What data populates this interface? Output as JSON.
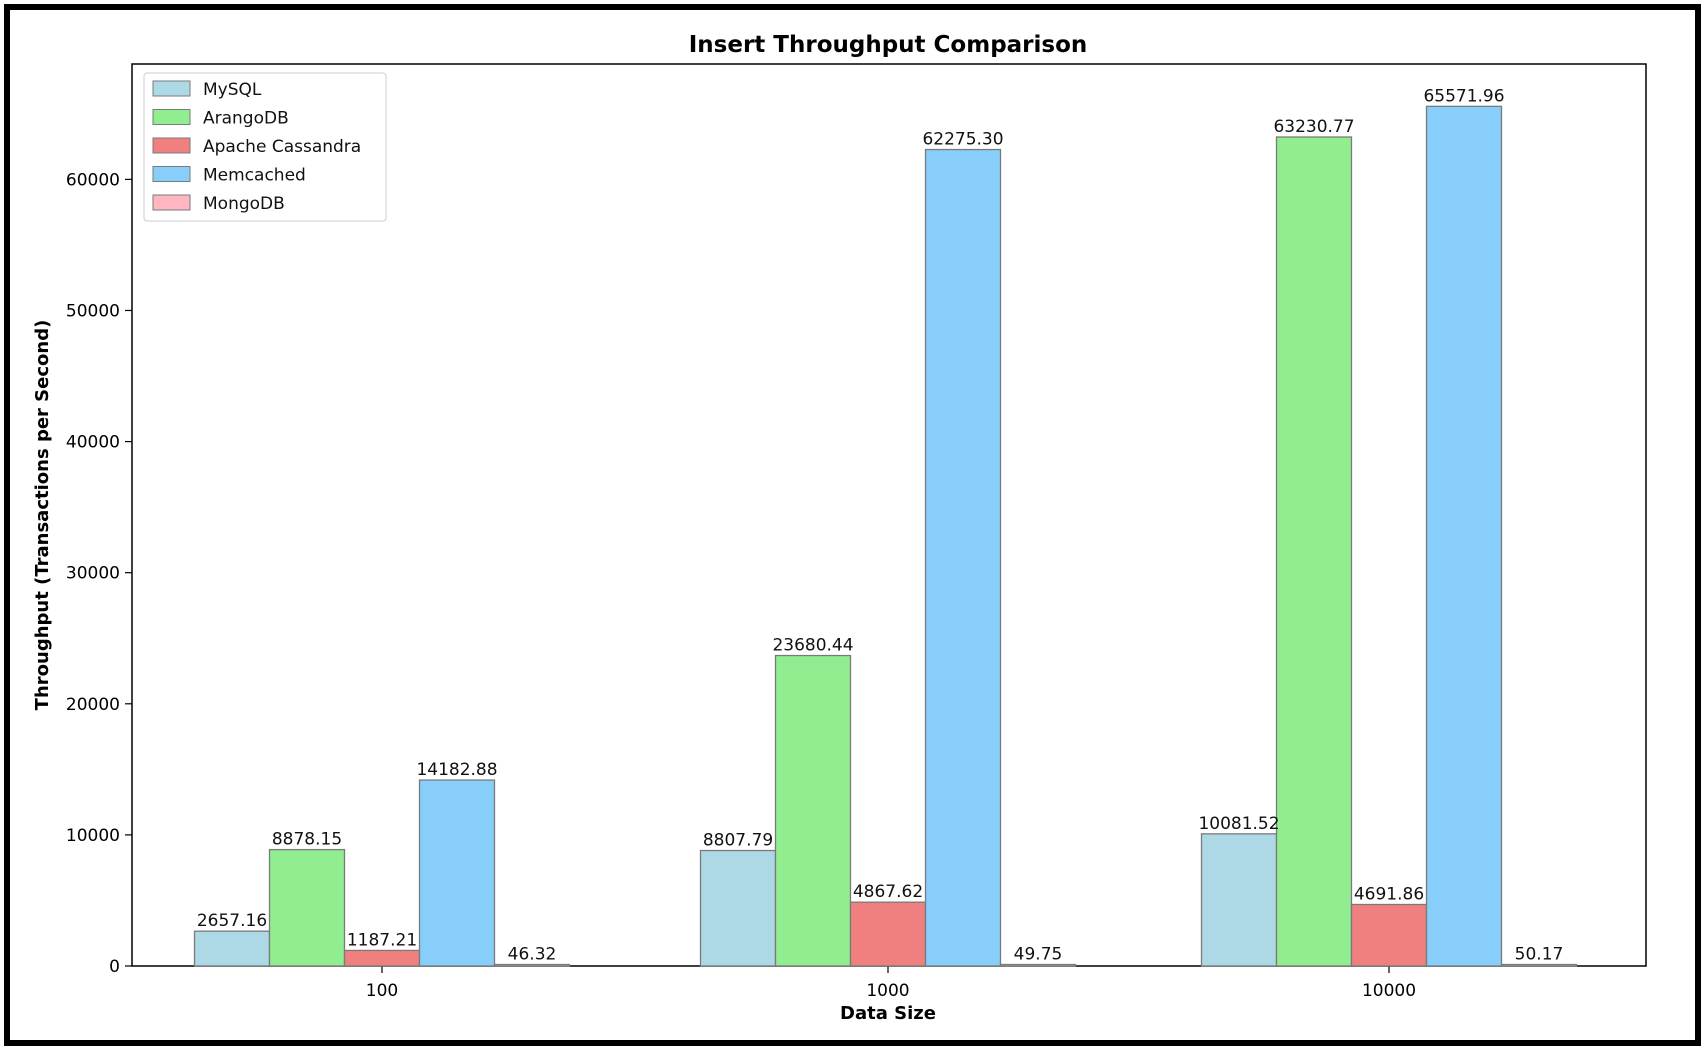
{
  "chart_data": {
    "type": "bar",
    "title": "Insert Throughput Comparison",
    "xlabel": "Data Size",
    "ylabel": "Throughput (Transactions per Second)",
    "categories": [
      "100",
      "1000",
      "10000"
    ],
    "ylim": [
      0,
      68800
    ],
    "yticks": [
      0,
      10000,
      20000,
      30000,
      40000,
      50000,
      60000
    ],
    "grid": false,
    "legend_position": "top-left",
    "series": [
      {
        "name": "MySQL",
        "color": "#add8e6",
        "values": [
          2657.16,
          8807.79,
          10081.52
        ],
        "labels": [
          "2657.16",
          "8807.79",
          "10081.52"
        ]
      },
      {
        "name": "ArangoDB",
        "color": "#90ee90",
        "values": [
          8878.15,
          23680.44,
          63230.77
        ],
        "labels": [
          "8878.15",
          "23680.44",
          "63230.77"
        ]
      },
      {
        "name": "Apache Cassandra",
        "color": "#f08080",
        "values": [
          1187.21,
          4867.62,
          4691.86
        ],
        "labels": [
          "1187.21",
          "4867.62",
          "4691.86"
        ]
      },
      {
        "name": "Memcached",
        "color": "#87cefa",
        "values": [
          14182.88,
          62275.3,
          65571.96
        ],
        "labels": [
          "14182.88",
          "62275.30",
          "65571.96"
        ]
      },
      {
        "name": "MongoDB",
        "color": "#ffb6c1",
        "values": [
          46.32,
          49.75,
          50.17
        ],
        "labels": [
          "46.32",
          "49.75",
          "50.17"
        ]
      }
    ]
  }
}
